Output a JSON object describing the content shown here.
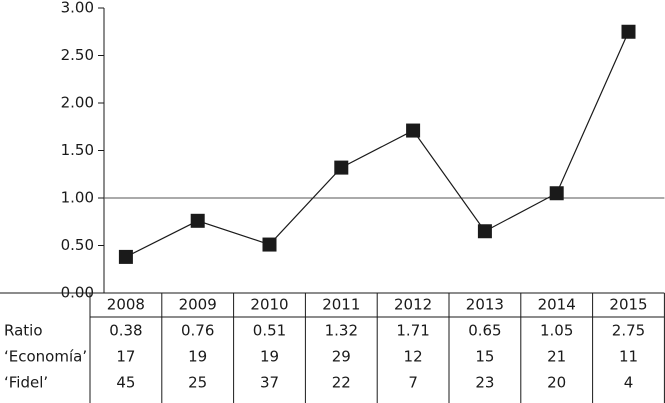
{
  "chart_data": {
    "type": "line",
    "name": "Ratio",
    "color": "#1a1a1a",
    "categories": [
      "2008",
      "2009",
      "2010",
      "2011",
      "2012",
      "2013",
      "2014",
      "2015"
    ],
    "values": [
      0.38,
      0.76,
      0.51,
      1.32,
      1.71,
      0.65,
      1.05,
      2.75
    ],
    "ylim": [
      0,
      3
    ],
    "yticks": [
      {
        "value": 0,
        "label": "0.00"
      },
      {
        "value": 0.5,
        "label": "0.50"
      },
      {
        "value": 1,
        "label": "1.00"
      },
      {
        "value": 1.5,
        "label": "1.50"
      },
      {
        "value": 2,
        "label": "2.00"
      },
      {
        "value": 2.5,
        "label": "2.50"
      },
      {
        "value": 3,
        "label": "3.00"
      }
    ],
    "reference_line": 1,
    "table_rows": [
      {
        "label": "‘Economía’",
        "values": [
          17,
          19,
          19,
          29,
          12,
          15,
          21,
          11
        ]
      },
      {
        "label": "‘Fidel’",
        "values": [
          45,
          25,
          37,
          22,
          7,
          23,
          20,
          4
        ]
      }
    ]
  }
}
